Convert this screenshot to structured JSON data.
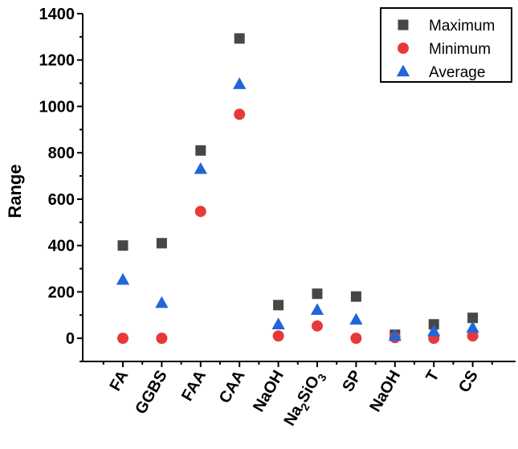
{
  "chart_data": {
    "type": "scatter",
    "title": "",
    "xlabel": "",
    "ylabel": "Range",
    "ylim": [
      -100,
      1400
    ],
    "yticks": [
      0,
      200,
      400,
      600,
      800,
      1000,
      1200,
      1400
    ],
    "grid": false,
    "legend_position": "top-right",
    "categories": [
      {
        "main": "FA"
      },
      {
        "main": "GGBS"
      },
      {
        "main": "FAA"
      },
      {
        "main": "CAA"
      },
      {
        "main": "NaOH"
      },
      {
        "main": "Na",
        "sub1": "2",
        "mid": "SiO",
        "sub2": "3"
      },
      {
        "main": "SP"
      },
      {
        "main": "NaOH"
      },
      {
        "main": "T"
      },
      {
        "main": "CS"
      }
    ],
    "series": [
      {
        "name": "Maximum",
        "marker": "square",
        "color": "#474747",
        "values": [
          400,
          410,
          810,
          1293,
          143,
          192,
          180,
          15,
          60,
          88
        ]
      },
      {
        "name": "Minimum",
        "marker": "circle",
        "color": "#e8393a",
        "values": [
          0,
          0,
          547,
          966,
          10,
          53,
          0,
          3,
          0,
          10
        ]
      },
      {
        "name": "Average",
        "marker": "triangle",
        "color": "#2166d8",
        "values": [
          252,
          152,
          730,
          1096,
          60,
          122,
          80,
          10,
          30,
          45
        ]
      }
    ]
  }
}
